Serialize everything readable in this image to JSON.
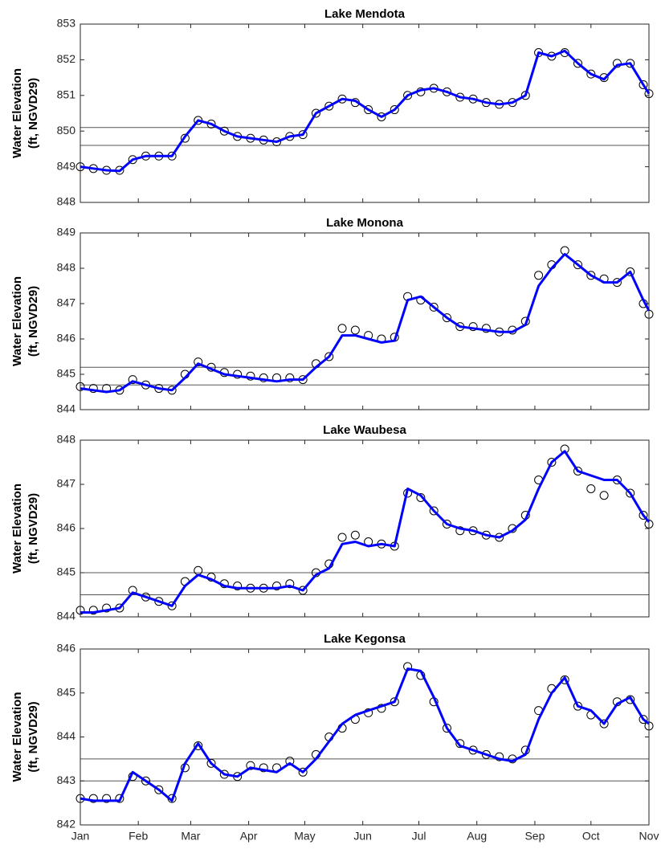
{
  "chart_data": [
    {
      "type": "line",
      "title": "Lake Mendota",
      "ylabel": [
        "Water Elevation",
        "(ft, NGVD29)"
      ],
      "xlim": [
        0,
        304
      ],
      "xticks": [
        0,
        31,
        59,
        90,
        120,
        151,
        181,
        212,
        243,
        273,
        304
      ],
      "ylim": [
        848,
        853
      ],
      "yticks": [
        848,
        849,
        850,
        851,
        852,
        853
      ],
      "hlines": [
        850.1,
        849.6
      ],
      "x": [
        0,
        7,
        14,
        21,
        28,
        35,
        42,
        49,
        56,
        63,
        70,
        77,
        84,
        91,
        98,
        105,
        112,
        119,
        126,
        133,
        140,
        147,
        154,
        161,
        168,
        175,
        182,
        189,
        196,
        203,
        210,
        217,
        224,
        231,
        238,
        245,
        252,
        259,
        266,
        273,
        280,
        287,
        294,
        301,
        304
      ],
      "series": [
        {
          "color": "#000000",
          "marker": "circle",
          "values": [
            849.0,
            848.95,
            848.9,
            848.9,
            849.2,
            849.3,
            849.3,
            849.3,
            849.8,
            850.3,
            850.2,
            850.0,
            849.85,
            849.8,
            849.75,
            849.7,
            849.85,
            849.9,
            850.5,
            850.7,
            850.9,
            850.8,
            850.6,
            850.4,
            850.6,
            851.0,
            851.1,
            851.2,
            851.1,
            850.95,
            850.9,
            850.8,
            850.75,
            850.8,
            851.0,
            852.2,
            852.1,
            852.2,
            851.9,
            851.6,
            851.5,
            851.9,
            851.9,
            851.3,
            851.05
          ]
        },
        {
          "color": "#0000ff",
          "marker": "none",
          "values": [
            849.0,
            848.95,
            848.9,
            848.88,
            849.2,
            849.3,
            849.3,
            849.3,
            849.85,
            850.3,
            850.2,
            850.0,
            849.85,
            849.8,
            849.75,
            849.7,
            849.85,
            849.9,
            850.5,
            850.7,
            850.9,
            850.85,
            850.6,
            850.4,
            850.6,
            851.0,
            851.15,
            851.2,
            851.1,
            850.95,
            850.9,
            850.8,
            850.75,
            850.8,
            851.0,
            852.2,
            852.1,
            852.25,
            851.9,
            851.6,
            851.45,
            851.85,
            851.9,
            851.3,
            851.05
          ]
        }
      ]
    },
    {
      "type": "line",
      "title": "Lake Monona",
      "ylabel": [
        "Water Elevation",
        "(ft, NGVD29)"
      ],
      "xlim": [
        0,
        304
      ],
      "xticks": [
        0,
        31,
        59,
        90,
        120,
        151,
        181,
        212,
        243,
        273,
        304
      ],
      "ylim": [
        844,
        849
      ],
      "yticks": [
        844,
        845,
        846,
        847,
        848,
        849
      ],
      "hlines": [
        845.2,
        844.7
      ],
      "x": [
        0,
        7,
        14,
        21,
        28,
        35,
        42,
        49,
        56,
        63,
        70,
        77,
        84,
        91,
        98,
        105,
        112,
        119,
        126,
        133,
        140,
        147,
        154,
        161,
        168,
        175,
        182,
        189,
        196,
        203,
        210,
        217,
        224,
        231,
        238,
        245,
        252,
        259,
        266,
        273,
        280,
        287,
        294,
        301,
        304
      ],
      "series": [
        {
          "color": "#000000",
          "marker": "circle",
          "values": [
            844.65,
            844.6,
            844.6,
            844.55,
            844.85,
            844.7,
            844.6,
            844.55,
            845.0,
            845.35,
            845.2,
            845.05,
            845.0,
            844.95,
            844.9,
            844.9,
            844.9,
            844.85,
            845.3,
            845.5,
            846.3,
            846.25,
            846.1,
            846.0,
            846.05,
            847.2,
            847.1,
            846.9,
            846.6,
            846.35,
            846.35,
            846.3,
            846.2,
            846.25,
            846.5,
            847.8,
            848.1,
            848.5,
            848.1,
            847.8,
            847.7,
            847.6,
            847.9,
            847.0,
            846.7
          ]
        },
        {
          "color": "#0000ff",
          "marker": "none",
          "values": [
            844.6,
            844.55,
            844.5,
            844.55,
            844.8,
            844.7,
            844.6,
            844.55,
            844.9,
            845.3,
            845.15,
            845.0,
            844.95,
            844.9,
            844.85,
            844.8,
            844.85,
            844.85,
            845.2,
            845.5,
            846.1,
            846.1,
            846.0,
            845.9,
            845.95,
            847.1,
            847.2,
            846.9,
            846.6,
            846.35,
            846.3,
            846.25,
            846.2,
            846.2,
            846.4,
            847.5,
            848.0,
            848.4,
            848.1,
            847.8,
            847.6,
            847.6,
            847.9,
            847.1,
            846.8
          ]
        }
      ]
    },
    {
      "type": "line",
      "title": "Lake Waubesa",
      "ylabel": [
        "Water Elevation",
        "(ft, NGVD29)"
      ],
      "xlim": [
        0,
        304
      ],
      "xticks": [
        0,
        31,
        59,
        90,
        120,
        151,
        181,
        212,
        243,
        273,
        304
      ],
      "ylim": [
        844,
        848
      ],
      "yticks": [
        844,
        845,
        846,
        847,
        848
      ],
      "hlines": [
        845.0,
        844.5
      ],
      "x": [
        0,
        7,
        14,
        21,
        28,
        35,
        42,
        49,
        56,
        63,
        70,
        77,
        84,
        91,
        98,
        105,
        112,
        119,
        126,
        133,
        140,
        147,
        154,
        161,
        168,
        175,
        182,
        189,
        196,
        203,
        210,
        217,
        224,
        231,
        238,
        245,
        252,
        259,
        266,
        273,
        280,
        287,
        294,
        301,
        304
      ],
      "series": [
        {
          "color": "#000000",
          "marker": "circle",
          "values": [
            844.15,
            844.15,
            844.2,
            844.2,
            844.6,
            844.45,
            844.35,
            844.25,
            844.8,
            845.05,
            844.9,
            844.75,
            844.7,
            844.65,
            844.65,
            844.7,
            844.75,
            844.6,
            845.0,
            845.2,
            845.8,
            845.85,
            845.7,
            845.65,
            845.6,
            846.8,
            846.7,
            846.4,
            846.1,
            845.95,
            845.95,
            845.85,
            845.8,
            846.0,
            846.3,
            847.1,
            847.5,
            847.8,
            847.3,
            846.9,
            846.75,
            847.1,
            846.8,
            846.3,
            846.1
          ]
        },
        {
          "color": "#0000ff",
          "marker": "none",
          "values": [
            844.1,
            844.1,
            844.15,
            844.2,
            844.55,
            844.45,
            844.35,
            844.25,
            844.7,
            844.95,
            844.85,
            844.7,
            844.65,
            844.65,
            844.65,
            844.65,
            844.7,
            844.6,
            844.95,
            845.1,
            845.65,
            845.7,
            845.6,
            845.65,
            845.6,
            846.9,
            846.75,
            846.4,
            846.1,
            846.0,
            845.95,
            845.85,
            845.8,
            845.95,
            846.2,
            846.9,
            847.5,
            847.75,
            847.3,
            847.2,
            847.1,
            847.1,
            846.8,
            846.3,
            846.15
          ]
        }
      ]
    },
    {
      "type": "line",
      "title": "Lake Kegonsa",
      "ylabel": [
        "Water Elevation",
        "(ft, NGVD29)"
      ],
      "xlim": [
        0,
        304
      ],
      "xticks": [
        {
          "value": 0,
          "label": "Jan"
        },
        {
          "value": 31,
          "label": "Feb"
        },
        {
          "value": 59,
          "label": "Mar"
        },
        {
          "value": 90,
          "label": "Apr"
        },
        {
          "value": 120,
          "label": "May"
        },
        {
          "value": 151,
          "label": "Jun"
        },
        {
          "value": 181,
          "label": "Jul"
        },
        {
          "value": 212,
          "label": "Aug"
        },
        {
          "value": 243,
          "label": "Sep"
        },
        {
          "value": 273,
          "label": "Oct"
        },
        {
          "value": 304,
          "label": "Nov"
        }
      ],
      "ylim": [
        842,
        846
      ],
      "yticks": [
        842,
        843,
        844,
        845,
        846
      ],
      "hlines": [
        843.5,
        843.0
      ],
      "x": [
        0,
        7,
        14,
        21,
        28,
        35,
        42,
        49,
        56,
        63,
        70,
        77,
        84,
        91,
        98,
        105,
        112,
        119,
        126,
        133,
        140,
        147,
        154,
        161,
        168,
        175,
        182,
        189,
        196,
        203,
        210,
        217,
        224,
        231,
        238,
        245,
        252,
        259,
        266,
        273,
        280,
        287,
        294,
        301,
        304
      ],
      "series": [
        {
          "color": "#000000",
          "marker": "circle",
          "values": [
            842.6,
            842.6,
            842.6,
            842.6,
            843.1,
            843.0,
            842.8,
            842.6,
            843.3,
            843.8,
            843.4,
            843.15,
            843.1,
            843.35,
            843.3,
            843.3,
            843.45,
            843.2,
            843.6,
            844.0,
            844.2,
            844.4,
            844.55,
            844.65,
            844.8,
            845.6,
            845.4,
            844.8,
            844.2,
            843.85,
            843.7,
            843.6,
            843.55,
            843.5,
            843.7,
            844.6,
            845.1,
            845.3,
            844.7,
            844.5,
            844.3,
            844.8,
            844.85,
            844.4,
            844.25
          ]
        },
        {
          "color": "#0000ff",
          "marker": "none",
          "values": [
            842.6,
            842.55,
            842.55,
            842.55,
            843.2,
            843.0,
            842.8,
            842.55,
            843.4,
            843.85,
            843.4,
            843.15,
            843.1,
            843.3,
            843.25,
            843.2,
            843.4,
            843.2,
            843.5,
            843.9,
            844.3,
            844.5,
            844.6,
            844.7,
            844.8,
            845.55,
            845.5,
            844.9,
            844.2,
            843.8,
            843.7,
            843.6,
            843.5,
            843.45,
            843.6,
            844.4,
            845.0,
            845.35,
            844.7,
            844.6,
            844.3,
            844.75,
            844.9,
            844.4,
            844.3
          ]
        }
      ]
    }
  ]
}
